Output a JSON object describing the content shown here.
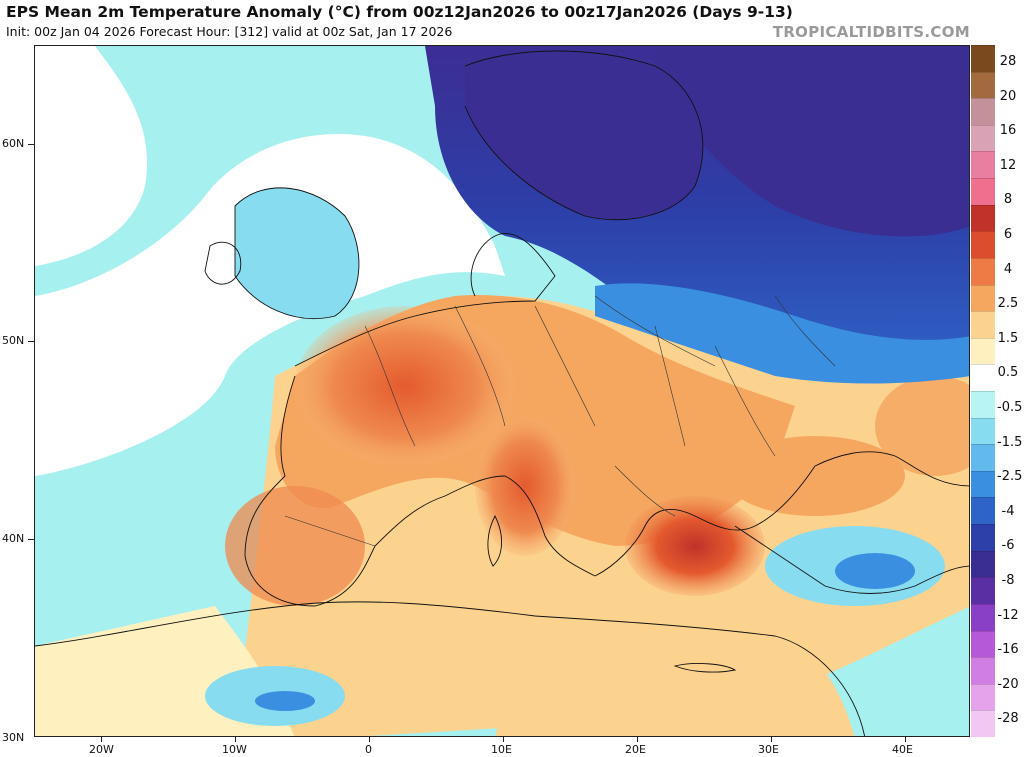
{
  "header": {
    "title": "EPS Mean 2m Temperature Anomaly (°C) from 00z12Jan2026 to 00z17Jan2026 (Days 9-13)",
    "subtitle": "Init: 00z Jan 04 2026   Forecast Hour: [312]   valid at 00z Sat, Jan 17 2026",
    "brand": "TROPICALTIDBITS.COM"
  },
  "axes": {
    "lat_labels": [
      "60N",
      "50N",
      "40N",
      "30N"
    ],
    "lon_labels": [
      "20W",
      "10W",
      "0",
      "10E",
      "20E",
      "30E",
      "40E"
    ]
  },
  "colorbar": {
    "labels": [
      "28",
      "20",
      "16",
      "12",
      "8",
      "6",
      "4",
      "2.5",
      "1.5",
      "0.5",
      "-0.5",
      "-1.5",
      "-2.5",
      "-4",
      "-6",
      "-8",
      "-12",
      "-16",
      "-20",
      "-28"
    ],
    "colors": [
      "#7a4a1e",
      "#a36a3d",
      "#c4919a",
      "#d9a3b5",
      "#e97fa0",
      "#f06e8e",
      "#c0322a",
      "#db4d2d",
      "#ee7a45",
      "#f5a760",
      "#fcd28f",
      "#fff0c0",
      "#ffffff",
      "#b7f4f4",
      "#88dcf0",
      "#61b9ec",
      "#3a8fe0",
      "#2e64c8",
      "#2d3fa8",
      "#3b2e93",
      "#5a2fa3",
      "#8a3fc7",
      "#b659d9",
      "#d07ee3",
      "#e5a3ec",
      "#f2c7f2"
    ]
  }
}
